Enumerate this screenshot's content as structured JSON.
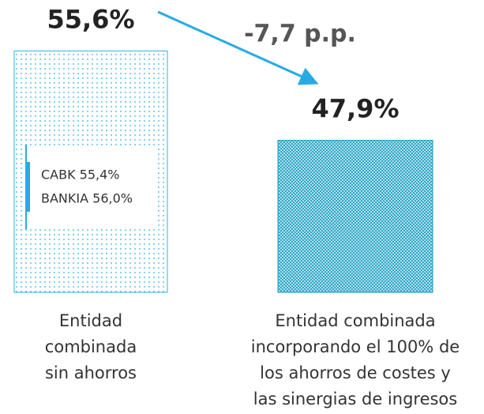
{
  "chart_data": {
    "type": "bar",
    "categories": [
      [
        "Entidad",
        "combinada",
        "sin ahorros"
      ],
      [
        "Entidad combinada",
        "incorporando el 100% de",
        "los ahorros de costes y",
        "las sinergias de ingresos"
      ]
    ],
    "values": [
      55.6,
      47.9
    ],
    "value_labels": [
      "55,6%",
      "47,9%"
    ],
    "colors": [
      "#2bb3e3",
      "#1a9cc0"
    ],
    "ylim": [
      34.8,
      57
    ],
    "annotation": "-7,7 p.p.",
    "inset_labels": [
      "CABK 55,4%",
      "BANKIA 56,0%"
    ]
  }
}
